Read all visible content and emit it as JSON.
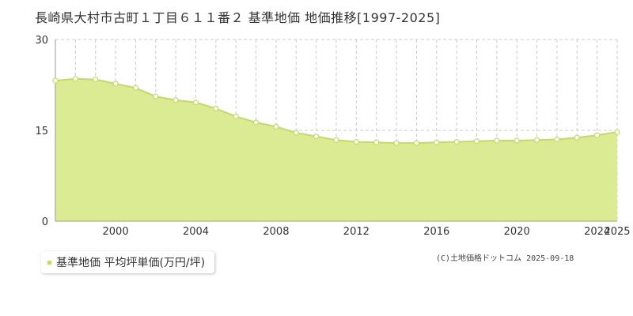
{
  "title": "長崎県大村市古町１丁目６１１番２ 基準地価 地価推移[1997-2025]",
  "legend": {
    "label": "基準地価 平均坪単価(万円/坪)"
  },
  "credit": "(C)土地価格ドットコム 2025-09-18",
  "colors": {
    "area_fill": "#dbeb93",
    "line": "#c3dd5a",
    "grid": "#cccccc",
    "axis": "#999999",
    "marker_fill": "#ffffff"
  },
  "chart_data": {
    "type": "area",
    "x": [
      1997,
      1998,
      1999,
      2000,
      2001,
      2002,
      2003,
      2004,
      2005,
      2006,
      2007,
      2008,
      2009,
      2010,
      2011,
      2012,
      2013,
      2014,
      2015,
      2016,
      2017,
      2018,
      2019,
      2020,
      2021,
      2022,
      2023,
      2024,
      2025
    ],
    "series": [
      {
        "name": "基準地価 平均坪単価(万円/坪)",
        "values": [
          23.2,
          23.5,
          23.4,
          22.7,
          22.0,
          20.6,
          20.0,
          19.6,
          18.6,
          17.3,
          16.3,
          15.6,
          14.6,
          14.0,
          13.4,
          13.1,
          13.0,
          12.9,
          12.9,
          13.0,
          13.1,
          13.2,
          13.3,
          13.3,
          13.4,
          13.5,
          13.8,
          14.2,
          14.7
        ]
      }
    ],
    "xticks": [
      2000,
      2004,
      2008,
      2012,
      2016,
      2020,
      2024,
      2025
    ],
    "yticks": [
      0,
      15,
      30
    ],
    "ylim": [
      0,
      30
    ],
    "xlim": [
      1997,
      2025
    ]
  }
}
